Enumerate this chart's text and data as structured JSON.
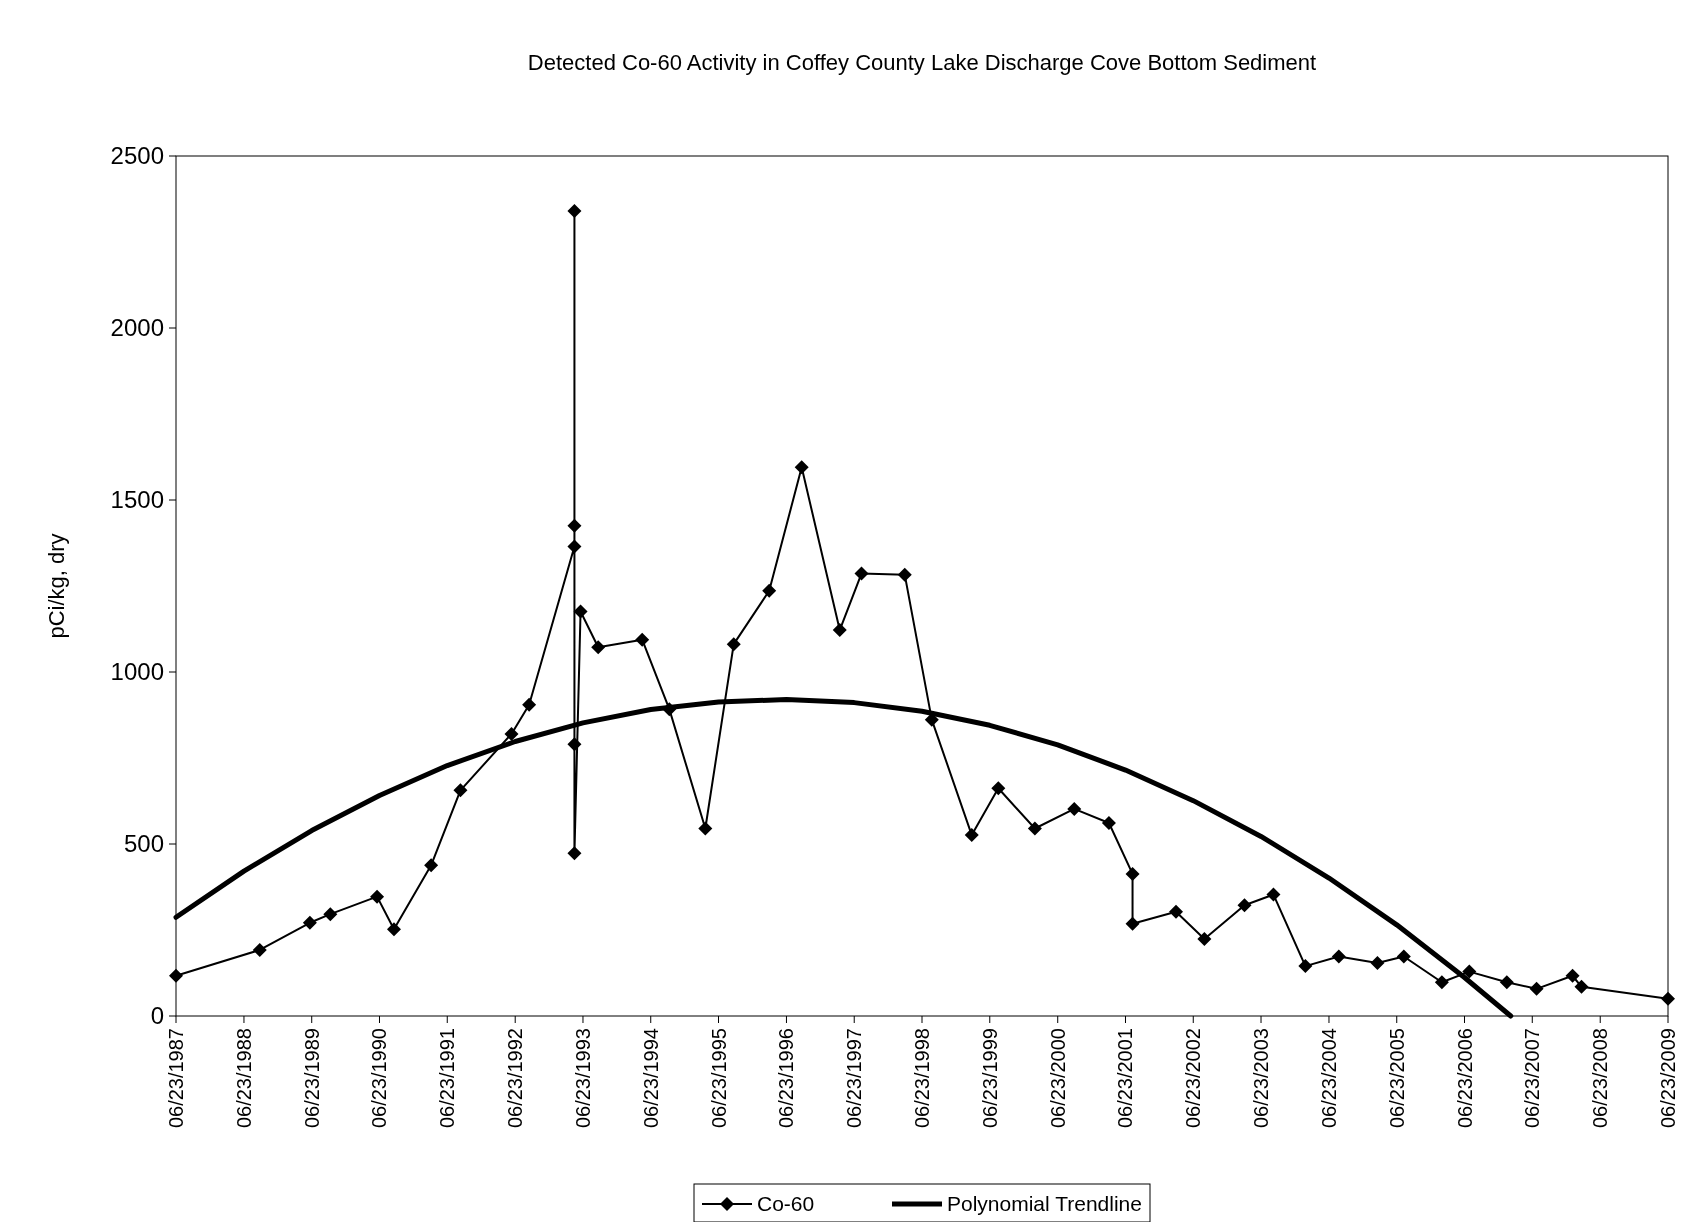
{
  "chart_data": {
    "type": "line",
    "title": "Detected Co-60 Activity in Coffey County Lake Discharge Cove Bottom Sediment",
    "ylabel": "pCi/kg, dry",
    "xlim": [
      "1987-06-23",
      "2009-06-23"
    ],
    "xticks": [
      {
        "value": "1987-06-23",
        "label": "06/23/1987"
      },
      {
        "value": "1988-06-23",
        "label": "06/23/1988"
      },
      {
        "value": "1989-06-23",
        "label": "06/23/1989"
      },
      {
        "value": "1990-06-23",
        "label": "06/23/1990"
      },
      {
        "value": "1991-06-23",
        "label": "06/23/1991"
      },
      {
        "value": "1992-06-23",
        "label": "06/23/1992"
      },
      {
        "value": "1993-06-23",
        "label": "06/23/1993"
      },
      {
        "value": "1994-06-23",
        "label": "06/23/1994"
      },
      {
        "value": "1995-06-23",
        "label": "06/23/1995"
      },
      {
        "value": "1996-06-23",
        "label": "06/23/1996"
      },
      {
        "value": "1997-06-23",
        "label": "06/23/1997"
      },
      {
        "value": "1998-06-23",
        "label": "06/23/1998"
      },
      {
        "value": "1999-06-23",
        "label": "06/23/1999"
      },
      {
        "value": "2000-06-23",
        "label": "06/23/2000"
      },
      {
        "value": "2001-06-23",
        "label": "06/23/2001"
      },
      {
        "value": "2002-06-23",
        "label": "06/23/2002"
      },
      {
        "value": "2003-06-23",
        "label": "06/23/2003"
      },
      {
        "value": "2004-06-23",
        "label": "06/23/2004"
      },
      {
        "value": "2005-06-23",
        "label": "06/23/2005"
      },
      {
        "value": "2006-06-23",
        "label": "06/23/2006"
      },
      {
        "value": "2007-06-23",
        "label": "06/23/2007"
      },
      {
        "value": "2008-06-23",
        "label": "06/23/2008"
      },
      {
        "value": "2009-06-23",
        "label": "06/23/2009"
      }
    ],
    "ylim": [
      0,
      2500
    ],
    "yticks": [
      0,
      500,
      1000,
      1500,
      2000,
      2500
    ],
    "grid": false,
    "legend": "bottom",
    "series": [
      {
        "name": "Co-60",
        "color": "#000000",
        "marker": "diamond",
        "x": [
          "1987-06-23",
          "1988-09-16",
          "1989-06-13",
          "1989-10-01",
          "1990-06-10",
          "1990-09-09",
          "1991-03-28",
          "1991-09-02",
          "1992-06-03",
          "1992-09-06",
          "1993-05-08",
          "1993-05-08",
          "1993-05-08",
          "1993-05-08",
          "1993-05-08",
          "1993-06-10",
          "1993-09-13",
          "1994-05-08",
          "1994-10-01",
          "1995-04-13",
          "1995-09-13",
          "1996-03-22",
          "1996-09-13",
          "1997-04-06",
          "1997-08-01",
          "1998-03-22",
          "1998-08-15",
          "1999-03-18",
          "1999-08-08",
          "2000-02-21",
          "2000-09-20",
          "2001-03-26",
          "2001-07-31",
          "2001-07-31",
          "2002-03-22",
          "2002-08-22",
          "2003-03-26",
          "2003-08-29",
          "2004-02-17",
          "2004-08-15",
          "2005-03-11",
          "2005-07-31",
          "2006-02-21",
          "2006-07-19",
          "2007-02-06",
          "2007-07-16",
          "2008-01-26",
          "2008-03-14",
          "2009-06-23"
        ],
        "values": [
          117,
          192,
          271,
          296,
          347,
          252,
          438,
          656,
          820,
          905,
          1365,
          1425,
          2340,
          790,
          473,
          1176,
          1072,
          1094,
          892,
          545,
          1081,
          1236,
          1595,
          1122,
          1286,
          1283,
          861,
          526,
          662,
          545,
          602,
          561,
          413,
          268,
          303,
          224,
          322,
          353,
          145,
          173,
          154,
          173,
          98,
          129,
          98,
          79,
          117,
          85,
          50
        ]
      },
      {
        "name": "Polynomial Trendline",
        "color": "#000000",
        "marker": "none",
        "x": [
          "1987-06-23",
          "1988-06-23",
          "1989-06-23",
          "1990-06-23",
          "1991-06-23",
          "1992-06-23",
          "1993-06-23",
          "1994-06-23",
          "1995-06-23",
          "1996-06-23",
          "1997-06-23",
          "1998-06-23",
          "1999-06-23",
          "2000-06-23",
          "2001-06-23",
          "2002-06-23",
          "2003-06-23",
          "2004-06-23",
          "2005-06-23",
          "2006-06-23",
          "2007-02-27"
        ],
        "values": [
          287,
          421,
          539,
          641,
          728,
          798,
          852,
          891,
          913,
          920,
          911,
          886,
          845,
          788,
          715,
          626,
          522,
          401,
          265,
          112,
          0
        ]
      }
    ]
  }
}
